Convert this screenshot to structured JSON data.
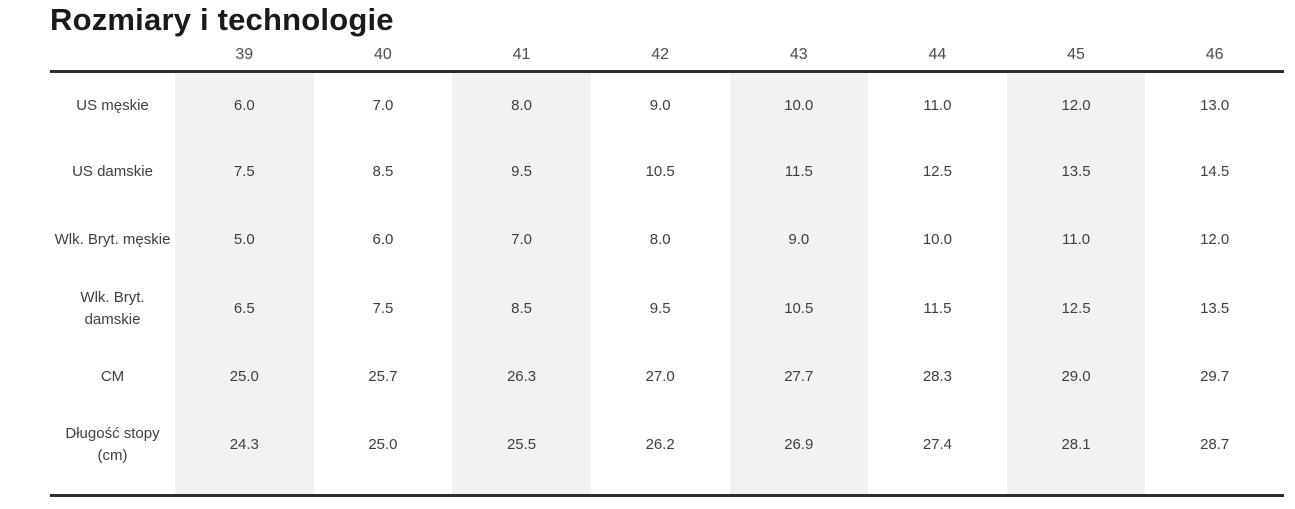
{
  "title": "Rozmiary i technologie",
  "colors": {
    "stripe": "#f2f2f2",
    "rule": "#2e2e2e"
  },
  "size_table": {
    "columns": [
      "39",
      "40",
      "41",
      "42",
      "43",
      "44",
      "45",
      "46"
    ],
    "rows": [
      {
        "label": "US męskie",
        "values": [
          "6.0",
          "7.0",
          "8.0",
          "9.0",
          "10.0",
          "11.0",
          "12.0",
          "13.0"
        ]
      },
      {
        "label": "US damskie",
        "values": [
          "7.5",
          "8.5",
          "9.5",
          "10.5",
          "11.5",
          "12.5",
          "13.5",
          "14.5"
        ]
      },
      {
        "label": "Wlk. Bryt. męskie",
        "values": [
          "5.0",
          "6.0",
          "7.0",
          "8.0",
          "9.0",
          "10.0",
          "11.0",
          "12.0"
        ]
      },
      {
        "label": "Wlk. Bryt.\ndamskie",
        "values": [
          "6.5",
          "7.5",
          "8.5",
          "9.5",
          "10.5",
          "11.5",
          "12.5",
          "13.5"
        ]
      },
      {
        "label": "CM",
        "values": [
          "25.0",
          "25.7",
          "26.3",
          "27.0",
          "27.7",
          "28.3",
          "29.0",
          "29.7"
        ]
      },
      {
        "label": "Długość stopy\n(cm)",
        "values": [
          "24.3",
          "25.0",
          "25.5",
          "26.2",
          "26.9",
          "27.4",
          "28.1",
          "28.7"
        ]
      }
    ]
  }
}
